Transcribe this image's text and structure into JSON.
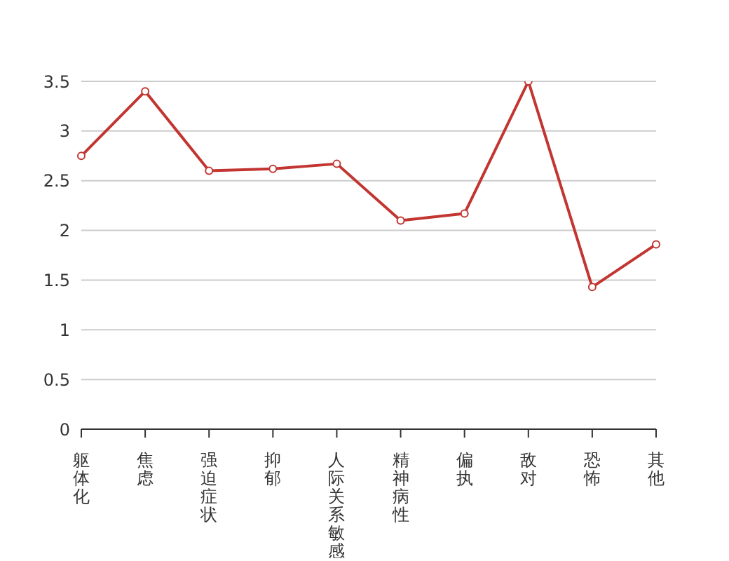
{
  "chart_data": {
    "type": "line",
    "categories": [
      "躯体化",
      "焦虑",
      "强迫症状",
      "抑郁",
      "人际关系敏感",
      "精神病性",
      "偏执",
      "敌对",
      "恐怖",
      "其他"
    ],
    "series": [
      {
        "color": "#c23531",
        "values": [
          2.75,
          3.4,
          2.6,
          2.62,
          2.67,
          2.1,
          2.17,
          3.5,
          1.43,
          1.86
        ]
      }
    ],
    "ylim": [
      0,
      3.5
    ],
    "yticks": [
      0,
      0.5,
      1,
      1.5,
      2,
      2.5,
      3,
      3.5
    ],
    "grid": "y",
    "marker": "circle",
    "line_style": "solid"
  }
}
